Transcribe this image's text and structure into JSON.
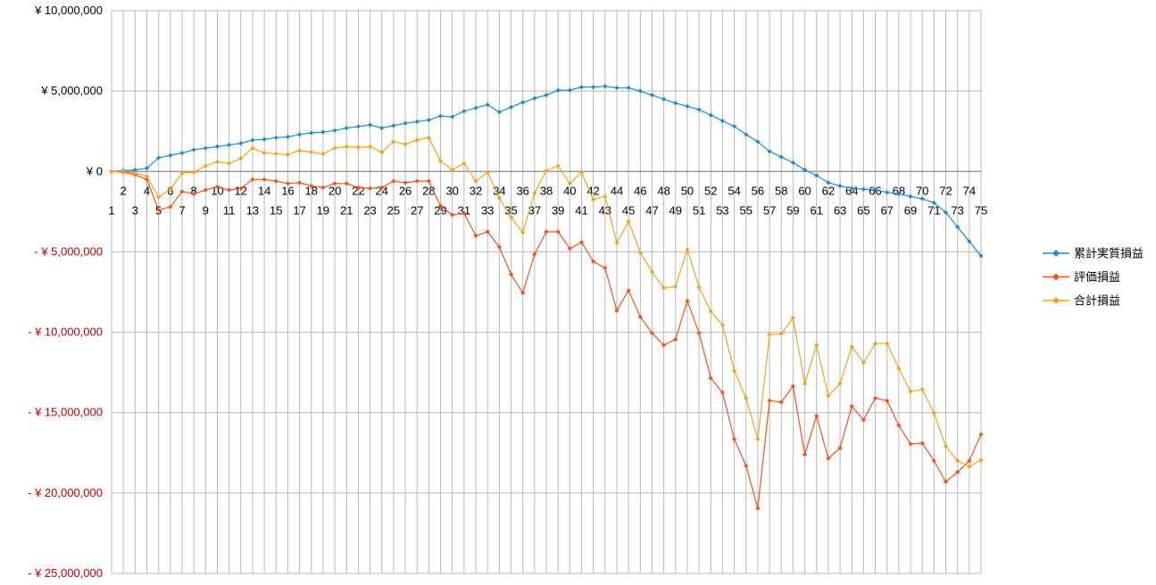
{
  "chart_data": {
    "type": "line",
    "title": "",
    "xlabel": "",
    "ylabel": "",
    "ylim": [
      -25000000,
      10000000
    ],
    "grid": true,
    "legend_position": "right",
    "yticks": [
      {
        "value": 10000000,
        "label": "¥ 10,000,000"
      },
      {
        "value": 5000000,
        "label": "¥ 5,000,000"
      },
      {
        "value": 0,
        "label": "¥ 0"
      },
      {
        "value": -5000000,
        "label": "- ¥ 5,000,000"
      },
      {
        "value": -10000000,
        "label": "- ¥ 10,000,000"
      },
      {
        "value": -15000000,
        "label": "- ¥ 15,000,000"
      },
      {
        "value": -20000000,
        "label": "- ¥ 20,000,000"
      },
      {
        "value": -25000000,
        "label": "- ¥ 25,000,000"
      }
    ],
    "positive_tick_color": "#000000",
    "negative_tick_color": "#c00000",
    "x": [
      1,
      2,
      3,
      4,
      5,
      6,
      7,
      8,
      9,
      10,
      11,
      12,
      13,
      14,
      15,
      16,
      17,
      18,
      19,
      20,
      21,
      22,
      23,
      24,
      25,
      26,
      27,
      28,
      29,
      30,
      31,
      32,
      33,
      34,
      35,
      36,
      37,
      38,
      39,
      40,
      41,
      42,
      43,
      44,
      45,
      46,
      47,
      48,
      49,
      50,
      51,
      52,
      53,
      54,
      55,
      56,
      57,
      58,
      59,
      60,
      61,
      62,
      63,
      64,
      65,
      66,
      67,
      68,
      69,
      70,
      71,
      72,
      73,
      74,
      75
    ],
    "series": [
      {
        "name": "累計実質損益",
        "color": "#1f8ad2",
        "values": [
          0,
          50000,
          100000,
          200000,
          850000,
          1000000,
          1150000,
          1350000,
          1450000,
          1550000,
          1650000,
          1750000,
          1950000,
          2000000,
          2100000,
          2150000,
          2300000,
          2400000,
          2450000,
          2550000,
          2700000,
          2800000,
          2900000,
          2700000,
          2850000,
          3000000,
          3100000,
          3200000,
          3450000,
          3400000,
          3750000,
          3950000,
          4150000,
          3700000,
          4000000,
          4300000,
          4550000,
          4750000,
          5050000,
          5050000,
          5250000,
          5250000,
          5300000,
          5200000,
          5200000,
          5000000,
          4750000,
          4500000,
          4250000,
          4050000,
          3850000,
          3500000,
          3150000,
          2800000,
          2300000,
          1850000,
          1250000,
          900000,
          550000,
          100000,
          -250000,
          -700000,
          -900000,
          -1050000,
          -1100000,
          -1150000,
          -1300000,
          -1400000,
          -1550000,
          -1700000,
          -1950000,
          -2550000,
          -3450000,
          -4350000,
          -5250000
        ]
      },
      {
        "name": "評価損益",
        "color": "#f4511e",
        "values": [
          0,
          -50000,
          -200000,
          -500000,
          -2400000,
          -2200000,
          -1250000,
          -1400000,
          -1150000,
          -950000,
          -1150000,
          -1050000,
          -500000,
          -500000,
          -600000,
          -750000,
          -700000,
          -900000,
          -1000000,
          -750000,
          -750000,
          -1000000,
          -1050000,
          -1000000,
          -600000,
          -700000,
          -600000,
          -600000,
          -2150000,
          -2700000,
          -2600000,
          -4000000,
          -3750000,
          -4700000,
          -6400000,
          -7550000,
          -5150000,
          -3750000,
          -3750000,
          -4800000,
          -4400000,
          -5600000,
          -6000000,
          -8650000,
          -7400000,
          -9050000,
          -10050000,
          -10800000,
          -10450000,
          -8050000,
          -10050000,
          -12850000,
          -13750000,
          -16650000,
          -18300000,
          -20950000,
          -14250000,
          -14350000,
          -13350000,
          -17600000,
          -15200000,
          -17850000,
          -17200000,
          -14600000,
          -15450000,
          -14100000,
          -14250000,
          -15800000,
          -16950000,
          -16900000,
          -18000000,
          -19300000,
          -18700000,
          -18000000,
          -16350000
        ]
      },
      {
        "name": "合計損益",
        "color": "#f7a21c",
        "values": [
          0,
          0,
          -100000,
          -300000,
          -1600000,
          -1100000,
          -100000,
          -50000,
          350000,
          600000,
          500000,
          800000,
          1450000,
          1150000,
          1100000,
          1050000,
          1300000,
          1200000,
          1100000,
          1450000,
          1550000,
          1500000,
          1550000,
          1200000,
          1850000,
          1700000,
          1950000,
          2100000,
          650000,
          100000,
          500000,
          -600000,
          -50000,
          -1650000,
          -2850000,
          -3800000,
          -1350000,
          50000,
          350000,
          -750000,
          -50000,
          -1750000,
          -1550000,
          -4450000,
          -3100000,
          -5050000,
          -6250000,
          -7250000,
          -7150000,
          -4850000,
          -7200000,
          -8700000,
          -9550000,
          -12400000,
          -14100000,
          -16650000,
          -10150000,
          -10100000,
          -9100000,
          -13200000,
          -10800000,
          -13950000,
          -13200000,
          -10900000,
          -11900000,
          -10700000,
          -10700000,
          -12250000,
          -13700000,
          -13550000,
          -15050000,
          -17100000,
          -18000000,
          -18350000,
          -17950000
        ]
      }
    ]
  }
}
